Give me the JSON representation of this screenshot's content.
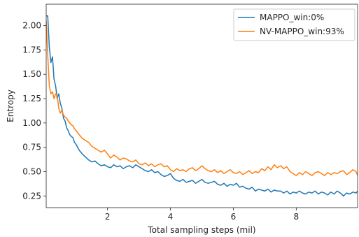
{
  "chart_data": {
    "type": "line",
    "title": "",
    "xlabel": "Total sampling steps (mil)",
    "ylabel": "Entropy",
    "xlim": [
      0.05,
      9.95
    ],
    "ylim": [
      0.13,
      2.22
    ],
    "xticks": [
      2,
      4,
      6,
      8
    ],
    "xtick_labels": [
      "2",
      "4",
      "6",
      "8"
    ],
    "yticks": [
      0.25,
      0.5,
      0.75,
      1.0,
      1.25,
      1.5,
      1.75,
      2.0
    ],
    "ytick_labels": [
      "0.25",
      "0.50",
      "0.75",
      "1.00",
      "1.25",
      "1.50",
      "1.75",
      "2.00"
    ],
    "grid": false,
    "legend_position": "top-right",
    "series": [
      {
        "name": "MAPPO_win:0%",
        "color": "#1f77b4",
        "x": [
          0.05,
          0.1,
          0.15,
          0.2,
          0.25,
          0.3,
          0.35,
          0.4,
          0.45,
          0.5,
          0.55,
          0.6,
          0.65,
          0.7,
          0.75,
          0.8,
          0.85,
          0.9,
          0.95,
          1.0,
          1.1,
          1.2,
          1.3,
          1.4,
          1.5,
          1.6,
          1.7,
          1.8,
          1.9,
          2.0,
          2.1,
          2.2,
          2.3,
          2.4,
          2.5,
          2.6,
          2.7,
          2.8,
          2.9,
          3.0,
          3.1,
          3.2,
          3.3,
          3.4,
          3.5,
          3.6,
          3.7,
          3.8,
          3.9,
          4.0,
          4.1,
          4.2,
          4.3,
          4.4,
          4.5,
          4.6,
          4.7,
          4.8,
          4.9,
          5.0,
          5.1,
          5.2,
          5.3,
          5.4,
          5.5,
          5.6,
          5.7,
          5.8,
          5.9,
          6.0,
          6.1,
          6.2,
          6.3,
          6.4,
          6.5,
          6.6,
          6.7,
          6.8,
          6.9,
          7.0,
          7.1,
          7.2,
          7.3,
          7.4,
          7.5,
          7.6,
          7.7,
          7.8,
          7.9,
          8.0,
          8.1,
          8.2,
          8.3,
          8.4,
          8.5,
          8.6,
          8.7,
          8.8,
          8.9,
          9.0,
          9.1,
          9.2,
          9.3,
          9.4,
          9.5,
          9.6,
          9.7,
          9.8,
          9.9,
          9.95
        ],
        "y": [
          2.1,
          2.1,
          1.78,
          1.62,
          1.68,
          1.45,
          1.38,
          1.25,
          1.3,
          1.2,
          1.15,
          1.05,
          1.02,
          0.95,
          0.92,
          0.88,
          0.86,
          0.85,
          0.8,
          0.78,
          0.72,
          0.68,
          0.65,
          0.62,
          0.6,
          0.61,
          0.58,
          0.56,
          0.57,
          0.55,
          0.54,
          0.57,
          0.55,
          0.56,
          0.53,
          0.55,
          0.56,
          0.54,
          0.57,
          0.55,
          0.53,
          0.51,
          0.5,
          0.52,
          0.49,
          0.5,
          0.47,
          0.45,
          0.46,
          0.48,
          0.43,
          0.41,
          0.4,
          0.42,
          0.39,
          0.4,
          0.41,
          0.38,
          0.4,
          0.42,
          0.39,
          0.38,
          0.39,
          0.4,
          0.37,
          0.36,
          0.38,
          0.35,
          0.37,
          0.36,
          0.38,
          0.34,
          0.35,
          0.33,
          0.32,
          0.34,
          0.3,
          0.32,
          0.31,
          0.3,
          0.32,
          0.29,
          0.31,
          0.3,
          0.3,
          0.28,
          0.3,
          0.27,
          0.29,
          0.28,
          0.3,
          0.28,
          0.27,
          0.29,
          0.28,
          0.3,
          0.27,
          0.29,
          0.28,
          0.26,
          0.29,
          0.27,
          0.3,
          0.28,
          0.25,
          0.28,
          0.27,
          0.29,
          0.28,
          0.3
        ]
      },
      {
        "name": "NV-MAPPO_win:93%",
        "color": "#ff7f0e",
        "x": [
          0.05,
          0.1,
          0.15,
          0.2,
          0.25,
          0.3,
          0.35,
          0.4,
          0.45,
          0.5,
          0.55,
          0.6,
          0.65,
          0.7,
          0.75,
          0.8,
          0.85,
          0.9,
          0.95,
          1.0,
          1.1,
          1.2,
          1.3,
          1.4,
          1.5,
          1.6,
          1.7,
          1.8,
          1.9,
          2.0,
          2.1,
          2.2,
          2.3,
          2.4,
          2.5,
          2.6,
          2.7,
          2.8,
          2.9,
          3.0,
          3.1,
          3.2,
          3.3,
          3.4,
          3.5,
          3.6,
          3.7,
          3.8,
          3.9,
          4.0,
          4.1,
          4.2,
          4.3,
          4.4,
          4.5,
          4.6,
          4.7,
          4.8,
          4.9,
          5.0,
          5.1,
          5.2,
          5.3,
          5.4,
          5.5,
          5.6,
          5.7,
          5.8,
          5.9,
          6.0,
          6.1,
          6.2,
          6.3,
          6.4,
          6.5,
          6.6,
          6.7,
          6.8,
          6.9,
          7.0,
          7.1,
          7.2,
          7.3,
          7.4,
          7.5,
          7.6,
          7.7,
          7.8,
          7.9,
          8.0,
          8.1,
          8.2,
          8.3,
          8.4,
          8.5,
          8.6,
          8.7,
          8.8,
          8.9,
          9.0,
          9.1,
          9.2,
          9.3,
          9.4,
          9.5,
          9.6,
          9.7,
          9.8,
          9.9,
          9.95
        ],
        "y": [
          2.05,
          1.7,
          1.38,
          1.3,
          1.32,
          1.25,
          1.3,
          1.28,
          1.15,
          1.1,
          1.13,
          1.08,
          1.06,
          1.05,
          1.02,
          1.0,
          0.98,
          0.97,
          0.94,
          0.92,
          0.88,
          0.84,
          0.82,
          0.8,
          0.76,
          0.74,
          0.72,
          0.7,
          0.72,
          0.68,
          0.64,
          0.67,
          0.65,
          0.62,
          0.64,
          0.63,
          0.61,
          0.6,
          0.62,
          0.58,
          0.57,
          0.59,
          0.56,
          0.58,
          0.55,
          0.57,
          0.58,
          0.55,
          0.56,
          0.52,
          0.5,
          0.53,
          0.51,
          0.52,
          0.5,
          0.53,
          0.54,
          0.51,
          0.53,
          0.56,
          0.53,
          0.51,
          0.5,
          0.52,
          0.49,
          0.51,
          0.48,
          0.5,
          0.52,
          0.49,
          0.48,
          0.5,
          0.47,
          0.49,
          0.51,
          0.48,
          0.5,
          0.49,
          0.53,
          0.51,
          0.55,
          0.52,
          0.57,
          0.54,
          0.56,
          0.53,
          0.55,
          0.5,
          0.48,
          0.46,
          0.49,
          0.47,
          0.5,
          0.48,
          0.46,
          0.49,
          0.5,
          0.48,
          0.46,
          0.49,
          0.47,
          0.49,
          0.48,
          0.5,
          0.51,
          0.47,
          0.49,
          0.52,
          0.5,
          0.46
        ]
      }
    ]
  }
}
